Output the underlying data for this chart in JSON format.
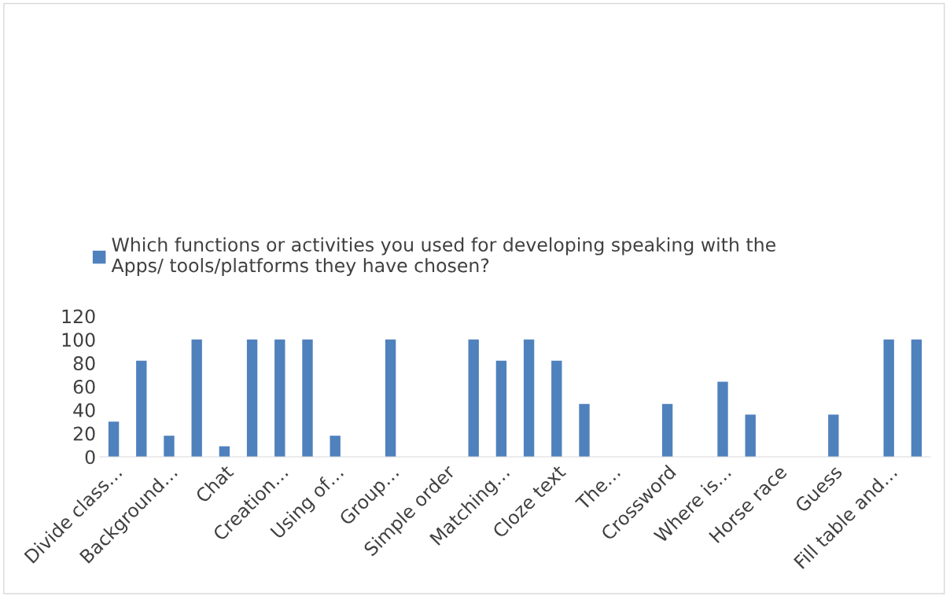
{
  "chart_data": {
    "type": "bar",
    "categories": [
      "Divide class…",
      null,
      "Background…",
      null,
      "Chat",
      null,
      "Creation…",
      null,
      "Using of…",
      null,
      "Group…",
      null,
      "Simple order",
      null,
      "Matching…",
      null,
      "Cloze text",
      null,
      "The…",
      null,
      "Crossword",
      null,
      "Where is…",
      null,
      "Horse race",
      null,
      "Guess",
      null,
      "Fill table and…",
      null
    ],
    "series": [
      {
        "name": "Which functions or activities you used for developing speaking with the Apps/ tools/platforms they have chosen?",
        "color": "#4f81bd",
        "values": [
          30,
          82,
          18,
          100,
          9,
          100,
          100,
          100,
          18,
          0,
          100,
          0,
          0,
          100,
          82,
          100,
          82,
          45,
          0,
          0,
          45,
          0,
          64,
          36,
          0,
          0,
          36,
          0,
          100,
          100
        ]
      }
    ],
    "ylim": [
      0,
      120
    ],
    "yticks": [
      0,
      20,
      40,
      60,
      80,
      100,
      120
    ],
    "legend": "top"
  }
}
